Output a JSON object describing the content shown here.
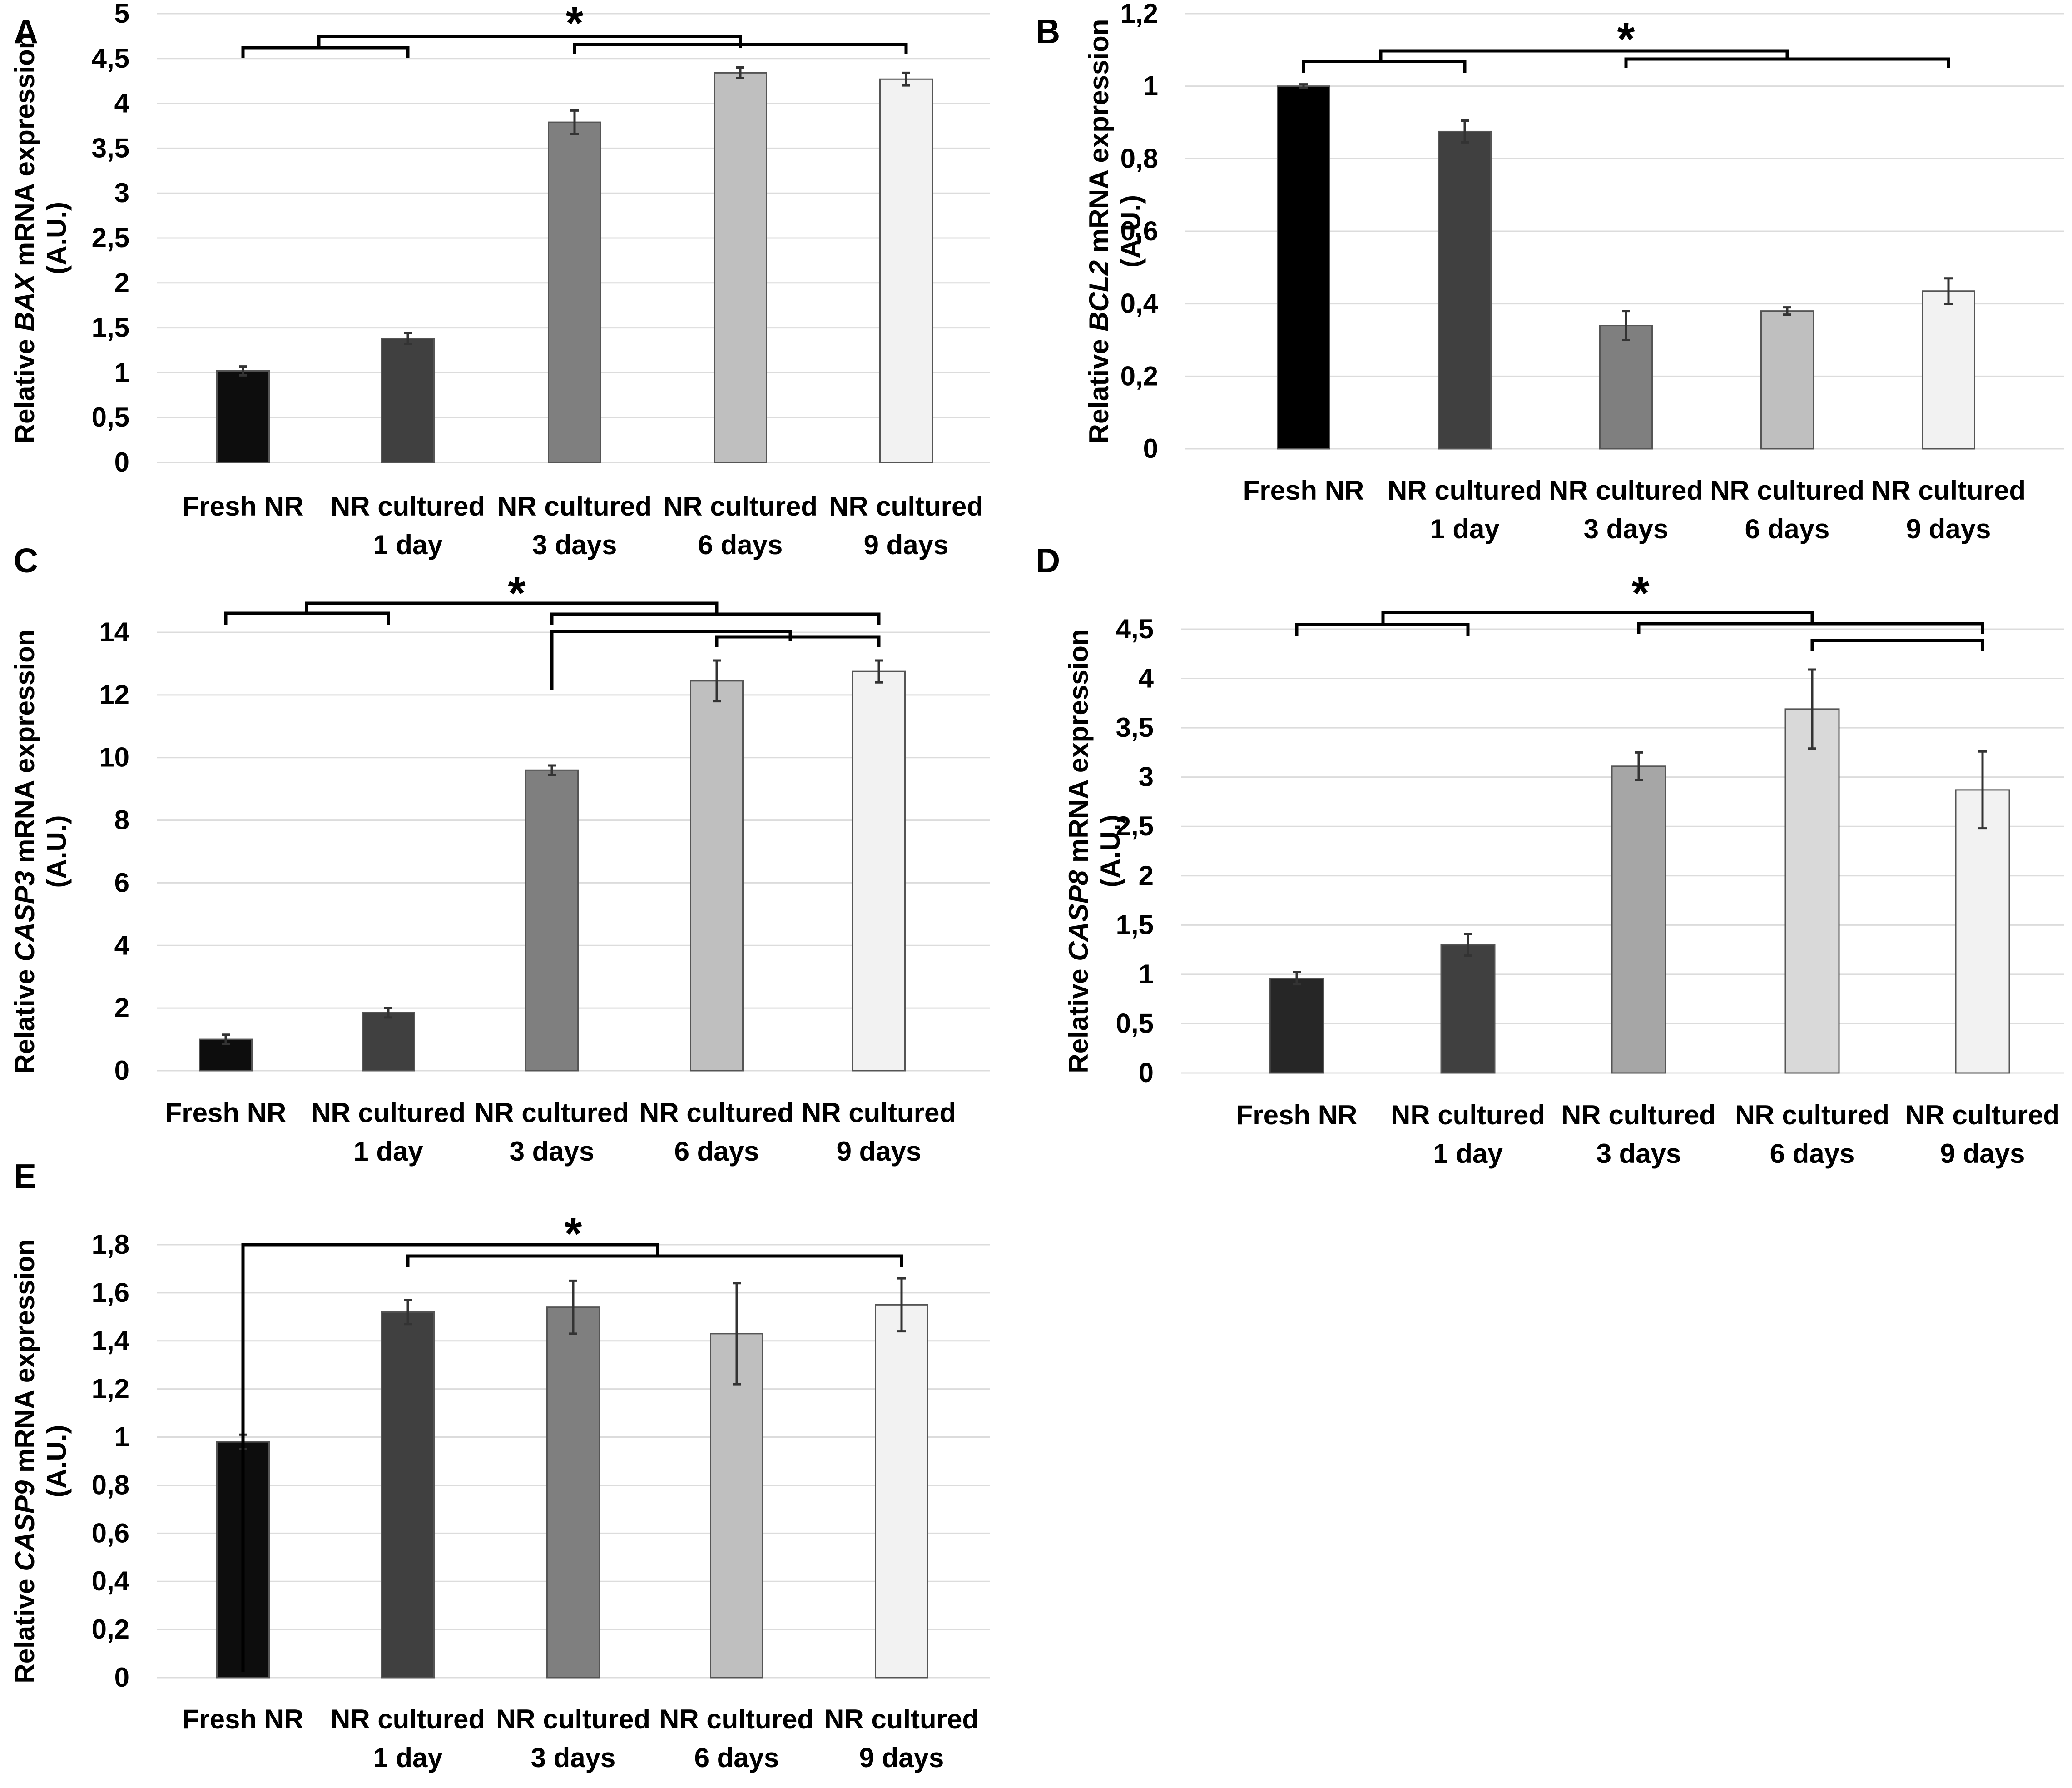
{
  "chart_data": [
    {
      "panel": "A",
      "type": "bar",
      "gene": "BAX",
      "ylabel_prefix": "Relative ",
      "ylabel_gene": "BAX",
      "ylabel_suffix": " mRNA expression",
      "ylabel_unit": "(A.U.)",
      "ylim": [
        0,
        5
      ],
      "yticks": [
        "0",
        "0,5",
        "1",
        "1,5",
        "2",
        "2,5",
        "3",
        "3,5",
        "4",
        "4,5",
        "5"
      ],
      "categories": [
        [
          "Fresh NR"
        ],
        [
          "NR cultured",
          "1 day"
        ],
        [
          "NR cultured",
          "3 days"
        ],
        [
          "NR cultured",
          "6 days"
        ],
        [
          "NR cultured",
          "9 days"
        ]
      ],
      "values": [
        1.02,
        1.38,
        3.79,
        4.34,
        4.27
      ],
      "errors": [
        0.05,
        0.06,
        0.13,
        0.06,
        0.07
      ],
      "colors": [
        "#0d0d0d",
        "#404040",
        "#7f7f7f",
        "#bfbfbf",
        "#f2f2f2"
      ],
      "significance": "*"
    },
    {
      "panel": "B",
      "type": "bar",
      "gene": "BCL2",
      "ylabel_prefix": "Relative ",
      "ylabel_gene": "BCL2",
      "ylabel_suffix": " mRNA expression",
      "ylabel_unit": "(A.U.)",
      "ylim": [
        0,
        1.2
      ],
      "yticks": [
        "0",
        "0,2",
        "0,4",
        "0,6",
        "0,8",
        "1",
        "1,2"
      ],
      "categories": [
        [
          "Fresh NR"
        ],
        [
          "NR cultured",
          "1 day"
        ],
        [
          "NR cultured",
          "3 days"
        ],
        [
          "NR cultured",
          "6 days"
        ],
        [
          "NR cultured",
          "9 days"
        ]
      ],
      "values": [
        1.0,
        0.875,
        0.34,
        0.38,
        0.435
      ],
      "errors": [
        0.005,
        0.03,
        0.04,
        0.01,
        0.035
      ],
      "colors": [
        "#000000",
        "#404040",
        "#7f7f7f",
        "#bfbfbf",
        "#f2f2f2"
      ],
      "significance": "*"
    },
    {
      "panel": "C",
      "type": "bar",
      "gene": "CASP3",
      "ylabel_prefix": "Relative ",
      "ylabel_gene": "CASP3",
      "ylabel_suffix": " mRNA expression",
      "ylabel_unit": "(A.U.)",
      "ylim": [
        0,
        14
      ],
      "yticks": [
        "0",
        "2",
        "4",
        "6",
        "8",
        "10",
        "12",
        "14"
      ],
      "categories": [
        [
          "Fresh NR"
        ],
        [
          "NR cultured",
          "1 day"
        ],
        [
          "NR cultured",
          "3 days"
        ],
        [
          "NR cultured",
          "6 days"
        ],
        [
          "NR cultured",
          "9 days"
        ]
      ],
      "values": [
        1.0,
        1.85,
        9.6,
        12.45,
        12.75
      ],
      "errors": [
        0.15,
        0.15,
        0.15,
        0.65,
        0.35
      ],
      "colors": [
        "#0d0d0d",
        "#404040",
        "#7f7f7f",
        "#bfbfbf",
        "#f2f2f2"
      ],
      "significance": "*"
    },
    {
      "panel": "D",
      "type": "bar",
      "gene": "CASP8",
      "ylabel_prefix": "Relative ",
      "ylabel_gene": "CASP8",
      "ylabel_suffix": " mRNA expression",
      "ylabel_unit": "(A.U.)",
      "ylim": [
        0,
        4.5
      ],
      "yticks": [
        "0",
        "0,5",
        "1",
        "1,5",
        "2",
        "2,5",
        "3",
        "3,5",
        "4",
        "4,5"
      ],
      "categories": [
        [
          "Fresh NR"
        ],
        [
          "NR cultured",
          "1 day"
        ],
        [
          "NR cultured",
          "3 days"
        ],
        [
          "NR cultured",
          "6 days"
        ],
        [
          "NR cultured",
          "9 days"
        ]
      ],
      "values": [
        0.96,
        1.3,
        3.11,
        3.69,
        2.87
      ],
      "errors": [
        0.06,
        0.11,
        0.14,
        0.4,
        0.39
      ],
      "colors": [
        "#262626",
        "#404040",
        "#a6a6a6",
        "#d9d9d9",
        "#f2f2f2"
      ],
      "significance": "*"
    },
    {
      "panel": "E",
      "type": "bar",
      "gene": "CASP9",
      "ylabel_prefix": "Relative ",
      "ylabel_gene": "CASP9",
      "ylabel_suffix": " mRNA expression",
      "ylabel_unit": "(A.U.)",
      "ylim": [
        0,
        1.8
      ],
      "yticks": [
        "0",
        "0,2",
        "0,4",
        "0,6",
        "0,8",
        "1",
        "1,2",
        "1,4",
        "1,6",
        "1,8"
      ],
      "categories": [
        [
          "Fresh NR"
        ],
        [
          "NR cultured",
          "1 day"
        ],
        [
          "NR cultured",
          "3 days"
        ],
        [
          "NR cultured",
          "6 days"
        ],
        [
          "NR cultured",
          "9 days"
        ]
      ],
      "values": [
        0.98,
        1.52,
        1.54,
        1.43,
        1.55
      ],
      "errors": [
        0.03,
        0.05,
        0.11,
        0.21,
        0.11
      ],
      "colors": [
        "#0d0d0d",
        "#404040",
        "#7f7f7f",
        "#bfbfbf",
        "#f2f2f2"
      ],
      "significance": "*"
    }
  ]
}
